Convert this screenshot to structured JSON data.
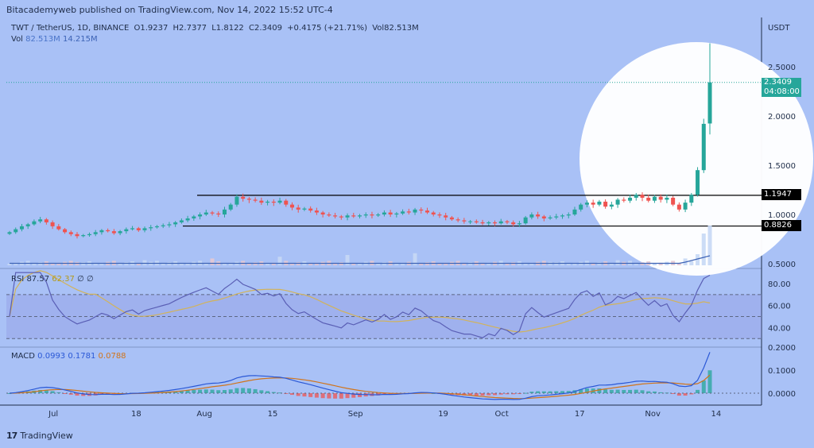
{
  "attribution": "Bitacademyweb published on TradingView.com, Nov 14, 2022 15:52 UTC-4",
  "legend": {
    "symbol": "TWT / TetherUS, 1D, BINANCE",
    "open": "O1.9237",
    "high": "H2.7377",
    "low": "L1.8122",
    "close": "C2.3409",
    "change": "+0.4175 (+21.71%)",
    "vol": "Vol82.513M"
  },
  "vol_row": {
    "label": "Vol",
    "v1": "82.513M",
    "v2": "14.215M"
  },
  "currency": "USDT",
  "rsi_row": {
    "label": "RSI",
    "v1": "87.57",
    "v2": "62.37",
    "v3": "∅",
    "v4": "∅"
  },
  "macd_row": {
    "label": "MACD",
    "v1": "0.0993",
    "v2": "0.1781",
    "v3": "0.0788"
  },
  "price_badge": {
    "price": "2.3409",
    "time": "04:08:00"
  },
  "level_badges": [
    "1.1947",
    "0.8826"
  ],
  "colors": {
    "background": "#a9c1f6",
    "up": "#26a69a",
    "down": "#ef5350",
    "rsi_line": "#5a5fb5",
    "rsi_ma": "#d2b35a",
    "macd_line": "#2a58d6",
    "signal_line": "#d1741a",
    "badge_teal": "#26a69a",
    "badge_black": "#000000",
    "highlight": "#ffffff"
  },
  "tradingview_logo": "TradingView",
  "chart_data": [
    {
      "type": "candlestick",
      "pane": "price",
      "y_ticks": [
        "2.5000",
        "2.0000",
        "1.5000",
        "1.0000",
        "0.5000"
      ],
      "y_tick_values": [
        2.5,
        2.0,
        1.5,
        1.0,
        0.5
      ],
      "x_ticks": [
        "Jul",
        "18",
        "Aug",
        "15",
        "Sep",
        "19",
        "Oct",
        "17",
        "Nov",
        "14"
      ],
      "x_tick_values": [
        "2022-07-01",
        "2022-07-18",
        "2022-08-01",
        "2022-08-15",
        "2022-09-01",
        "2022-09-19",
        "2022-10-01",
        "2022-10-17",
        "2022-11-01",
        "2022-11-14"
      ],
      "levels": [
        1.1947,
        0.8826
      ],
      "last_price": 2.3409,
      "ohlc_last": {
        "open": 1.9237,
        "high": 2.7377,
        "low": 1.8122,
        "close": 2.3409
      },
      "closes": [
        0.82,
        0.85,
        0.88,
        0.9,
        0.93,
        0.95,
        0.92,
        0.88,
        0.85,
        0.82,
        0.8,
        0.78,
        0.79,
        0.8,
        0.82,
        0.84,
        0.83,
        0.81,
        0.83,
        0.85,
        0.86,
        0.84,
        0.86,
        0.87,
        0.88,
        0.89,
        0.9,
        0.92,
        0.94,
        0.96,
        0.98,
        1.0,
        1.02,
        1.01,
        1.0,
        1.05,
        1.1,
        1.18,
        1.16,
        1.15,
        1.14,
        1.12,
        1.13,
        1.12,
        1.14,
        1.1,
        1.07,
        1.05,
        1.06,
        1.04,
        1.02,
        1.0,
        0.99,
        0.98,
        0.97,
        0.99,
        0.98,
        0.99,
        1.0,
        0.99,
        1.0,
        1.02,
        1.0,
        1.01,
        1.03,
        1.02,
        1.05,
        1.04,
        1.02,
        1.0,
        0.99,
        0.97,
        0.95,
        0.94,
        0.93,
        0.93,
        0.92,
        0.91,
        0.92,
        0.91,
        0.93,
        0.92,
        0.9,
        0.91,
        0.97,
        1.0,
        0.98,
        0.96,
        0.97,
        0.98,
        0.99,
        1.0,
        1.05,
        1.1,
        1.12,
        1.1,
        1.13,
        1.08,
        1.1,
        1.15,
        1.14,
        1.17,
        1.2,
        1.17,
        1.14,
        1.18,
        1.15,
        1.17,
        1.1,
        1.05,
        1.12,
        1.2,
        1.45,
        1.92,
        2.3409
      ],
      "volume_unit": "M",
      "last_volume": 82.513
    },
    {
      "type": "line",
      "pane": "rsi",
      "y_ticks": [
        "80.00",
        "60.00",
        "40.00"
      ],
      "y_tick_values": [
        80,
        60,
        40
      ],
      "bands": [
        70,
        50,
        30
      ],
      "series": [
        {
          "name": "RSI",
          "last": 87.57
        },
        {
          "name": "RSI-based MA",
          "last": 62.37
        }
      ]
    },
    {
      "type": "line",
      "pane": "macd",
      "y_ticks": [
        "0.2000",
        "0.1000",
        "0.0000"
      ],
      "y_tick_values": [
        0.2,
        0.1,
        0.0
      ],
      "series": [
        {
          "name": "MACD",
          "last": 0.1781
        },
        {
          "name": "Signal",
          "last": 0.0788
        },
        {
          "name": "Histogram",
          "last": 0.0993
        }
      ]
    }
  ]
}
